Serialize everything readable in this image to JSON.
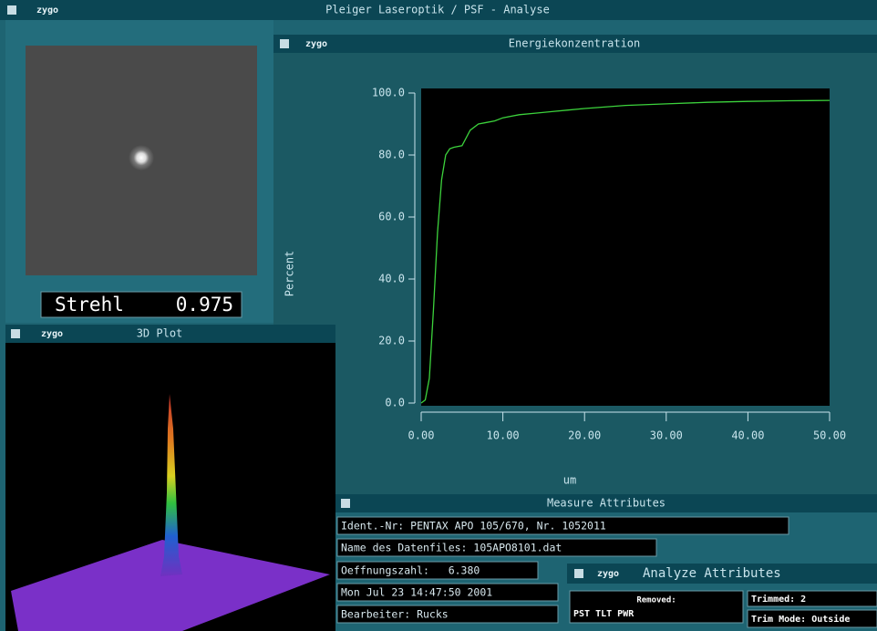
{
  "app_title": "Pleiger Laseroptik / PSF - Analyse",
  "logo": "zygo",
  "strehl": {
    "label": "Strehl",
    "value": 0.975
  },
  "plot3d_title": "3D Plot",
  "chart_data": {
    "type": "line",
    "title": "Energiekonzentration",
    "x_label": "um",
    "y_label": "Percent",
    "x": [
      0,
      0.5,
      1,
      1.5,
      2,
      2.5,
      3,
      3.5,
      4,
      5,
      6,
      7,
      8,
      9,
      10,
      12,
      14,
      16,
      18,
      20,
      25,
      30,
      35,
      40,
      45,
      50
    ],
    "series": [
      {
        "color": "#3cd23c",
        "values": [
          0,
          1,
          8,
          30,
          55,
          72,
          80,
          82,
          82.5,
          83,
          88,
          90,
          90.5,
          91,
          92,
          93,
          93.5,
          94,
          94.5,
          95,
          96,
          96.5,
          97,
          97.3,
          97.5,
          97.6
        ]
      }
    ],
    "xlim": [
      0,
      50
    ],
    "ylim": [
      0,
      100
    ],
    "xticks": [
      {
        "value": 0,
        "label": "0.00"
      },
      {
        "value": 10,
        "label": "10.00"
      },
      {
        "value": 20,
        "label": "20.00"
      },
      {
        "value": 30,
        "label": "30.00"
      },
      {
        "value": 40,
        "label": "40.00"
      },
      {
        "value": 50,
        "label": "50.00"
      }
    ],
    "yticks": [
      {
        "value": 0,
        "label": "0.0"
      },
      {
        "value": 20,
        "label": "20.0"
      },
      {
        "value": 40,
        "label": "40.0"
      },
      {
        "value": 60,
        "label": "60.0"
      },
      {
        "value": 80,
        "label": "80.0"
      },
      {
        "value": 100,
        "label": "100.0"
      }
    ]
  },
  "measure": {
    "title": "Measure Attributes",
    "fields": [
      "Ident.-Nr: PENTAX APO 105/670, Nr. 1052011",
      "Name des Datenfiles: 105APO8101.dat",
      "Oeffnungszahl:   6.380",
      "Mon Jul 23 14:47:50 2001",
      "Bearbeiter: Rucks"
    ]
  },
  "analyze": {
    "title": "Analyze Attributes",
    "removed_label": "Removed:",
    "removed_value": "PST TLT PWR",
    "trimmed": "Trimmed: 2",
    "trim_mode": "Trim Mode: Outside"
  }
}
